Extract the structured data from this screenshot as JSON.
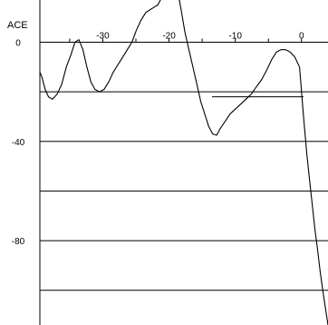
{
  "chart_data": {
    "type": "line",
    "ylabel": "ACE",
    "xlim": [
      -39.5,
      4.0
    ],
    "ylim": [
      -114,
      17
    ],
    "x_ticks": [
      -30,
      -20,
      -10,
      0
    ],
    "y_tick_labels": [
      0,
      -40,
      -80
    ],
    "y_gridlines": [
      -20,
      -40,
      -60,
      -80,
      -100
    ],
    "grid": true,
    "series": [
      {
        "x": [
          -39.5,
          -39.2,
          -38.7,
          -38.2,
          -37.6,
          -36.9,
          -36.2,
          -35.5,
          -34.8,
          -34.2,
          -33.6,
          -33.0,
          -32.4,
          -31.8,
          -31.2,
          -30.5,
          -29.8,
          -29.1,
          -28.4,
          -27.7,
          -27.0,
          -26.3,
          -25.6,
          -24.9,
          -24.2,
          -23.5,
          -22.9,
          -22.3,
          -21.7,
          -21.1,
          -20.5,
          -19.9,
          -19.4,
          -18.9,
          -18.5,
          -18.1,
          -17.6,
          -17.0,
          -16.4,
          -15.8,
          -15.2,
          -14.6,
          -14.0,
          -13.4,
          -12.8,
          -12.3,
          -11.8,
          -11.3,
          -10.8,
          -10.0,
          -9.2,
          -8.4,
          -7.6,
          -6.8,
          -6.0,
          -5.2,
          -4.5,
          -3.8,
          -3.1,
          -2.4,
          -1.7,
          -1.0,
          -0.3,
          0.3,
          0.8,
          1.2,
          1.6,
          2.0,
          2.4,
          2.8,
          3.2,
          3.6,
          4.0
        ],
        "y": [
          -12,
          -14,
          -19,
          -22,
          -23,
          -21,
          -17,
          -10,
          -5,
          0,
          1,
          -3,
          -10,
          -16,
          -19,
          -20,
          -19,
          -16,
          -12,
          -9,
          -6,
          -3,
          0,
          5,
          9,
          12,
          13,
          14,
          15,
          18,
          20,
          23,
          24,
          22,
          18,
          12,
          4,
          -3,
          -10,
          -17,
          -24,
          -29,
          -34,
          -37,
          -37.5,
          -35,
          -33,
          -31,
          -29,
          -27,
          -25,
          -23,
          -21,
          -18,
          -15,
          -11,
          -7,
          -4,
          -3,
          -3,
          -4,
          -6,
          -10,
          -30,
          -45,
          -55,
          -65,
          -75,
          -83,
          -92,
          -100,
          -107,
          -114
        ]
      }
    ],
    "hline": {
      "y": -22,
      "x_start": -13.5,
      "x_end": 0.3
    }
  }
}
